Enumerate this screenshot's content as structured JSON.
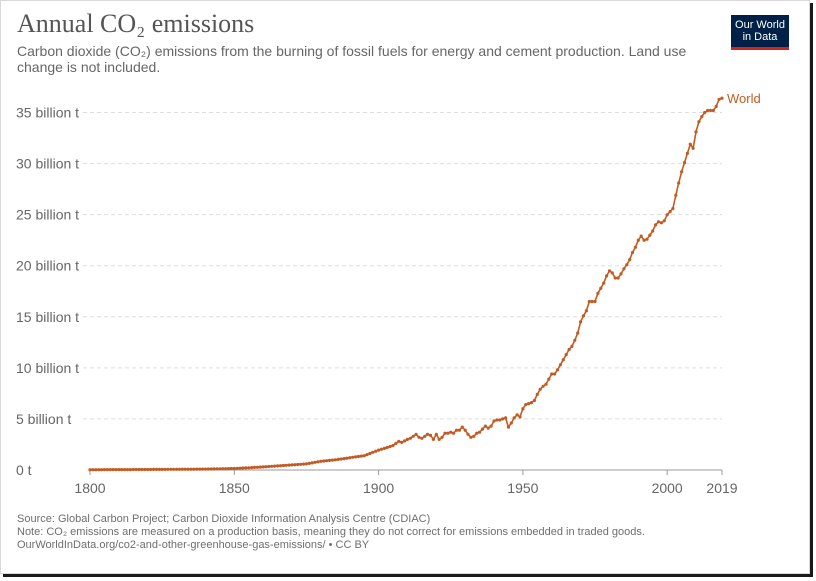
{
  "title": "Annual CO₂ emissions",
  "subtitle": "Carbon dioxide (CO₂) emissions from the burning of fossil fuels for energy and cement production. Land use change is not included.",
  "logo": {
    "line1": "Our World",
    "line2": "in Data"
  },
  "footer": {
    "source": "Source: Global Carbon Project; Carbon Dioxide Information Analysis Centre (CDIAC)",
    "note": "Note: CO₂ emissions are measured on a production basis, meaning they do not correct for emissions embedded in traded goods.",
    "url": "OurWorldInData.org/co2-and-other-greenhouse-gas-emissions/ • CC BY"
  },
  "colors": {
    "series": "#c15b23",
    "grid": "#dddddd",
    "axis": "#666666",
    "logo_bg": "#002147",
    "logo_accent": "#ce261e"
  },
  "chart_data": {
    "type": "line",
    "xlim": [
      1800,
      2019
    ],
    "ylim": [
      0,
      37.5
    ],
    "x_ticks": [
      1800,
      1850,
      1900,
      1950,
      2000,
      2019
    ],
    "y_ticks": [
      {
        "value": 0,
        "label": "0 t"
      },
      {
        "value": 5,
        "label": "5 billion t"
      },
      {
        "value": 10,
        "label": "10 billion t"
      },
      {
        "value": 15,
        "label": "15 billion t"
      },
      {
        "value": 20,
        "label": "20 billion t"
      },
      {
        "value": 25,
        "label": "25 billion t"
      },
      {
        "value": 30,
        "label": "30 billion t"
      },
      {
        "value": 35,
        "label": "35 billion t"
      }
    ],
    "grid": "horizontal dashed",
    "markers": true,
    "series": [
      {
        "name": "World",
        "points": [
          [
            1800,
            0.03
          ],
          [
            1810,
            0.04
          ],
          [
            1820,
            0.05
          ],
          [
            1830,
            0.07
          ],
          [
            1840,
            0.09
          ],
          [
            1850,
            0.15
          ],
          [
            1855,
            0.22
          ],
          [
            1860,
            0.3
          ],
          [
            1865,
            0.4
          ],
          [
            1870,
            0.5
          ],
          [
            1875,
            0.6
          ],
          [
            1880,
            0.85
          ],
          [
            1885,
            1.0
          ],
          [
            1890,
            1.2
          ],
          [
            1895,
            1.4
          ],
          [
            1900,
            1.95
          ],
          [
            1903,
            2.2
          ],
          [
            1905,
            2.4
          ],
          [
            1907,
            2.8
          ],
          [
            1908,
            2.7
          ],
          [
            1910,
            3.0
          ],
          [
            1911,
            3.1
          ],
          [
            1912,
            3.3
          ],
          [
            1913,
            3.5
          ],
          [
            1914,
            3.2
          ],
          [
            1915,
            3.1
          ],
          [
            1916,
            3.3
          ],
          [
            1917,
            3.5
          ],
          [
            1918,
            3.4
          ],
          [
            1919,
            3.0
          ],
          [
            1920,
            3.5
          ],
          [
            1921,
            3.0
          ],
          [
            1922,
            3.2
          ],
          [
            1923,
            3.6
          ],
          [
            1924,
            3.6
          ],
          [
            1925,
            3.7
          ],
          [
            1926,
            3.6
          ],
          [
            1927,
            3.9
          ],
          [
            1928,
            3.9
          ],
          [
            1929,
            4.2
          ],
          [
            1930,
            3.9
          ],
          [
            1931,
            3.5
          ],
          [
            1932,
            3.2
          ],
          [
            1933,
            3.3
          ],
          [
            1934,
            3.6
          ],
          [
            1935,
            3.7
          ],
          [
            1936,
            4.0
          ],
          [
            1937,
            4.3
          ],
          [
            1938,
            4.1
          ],
          [
            1939,
            4.3
          ],
          [
            1940,
            4.8
          ],
          [
            1941,
            4.9
          ],
          [
            1942,
            4.9
          ],
          [
            1943,
            5.0
          ],
          [
            1944,
            5.1
          ],
          [
            1945,
            4.2
          ],
          [
            1946,
            4.6
          ],
          [
            1947,
            5.1
          ],
          [
            1948,
            5.4
          ],
          [
            1949,
            5.2
          ],
          [
            1950,
            6.0
          ],
          [
            1951,
            6.4
          ],
          [
            1952,
            6.5
          ],
          [
            1953,
            6.6
          ],
          [
            1954,
            6.8
          ],
          [
            1955,
            7.4
          ],
          [
            1956,
            7.9
          ],
          [
            1957,
            8.2
          ],
          [
            1958,
            8.4
          ],
          [
            1959,
            8.9
          ],
          [
            1960,
            9.4
          ],
          [
            1961,
            9.4
          ],
          [
            1962,
            9.8
          ],
          [
            1963,
            10.3
          ],
          [
            1964,
            10.8
          ],
          [
            1965,
            11.3
          ],
          [
            1966,
            11.8
          ],
          [
            1967,
            12.1
          ],
          [
            1968,
            12.7
          ],
          [
            1969,
            13.4
          ],
          [
            1970,
            14.5
          ],
          [
            1971,
            15.1
          ],
          [
            1972,
            15.6
          ],
          [
            1973,
            16.5
          ],
          [
            1974,
            16.5
          ],
          [
            1975,
            16.5
          ],
          [
            1976,
            17.3
          ],
          [
            1977,
            17.8
          ],
          [
            1978,
            18.3
          ],
          [
            1979,
            19.0
          ],
          [
            1980,
            19.5
          ],
          [
            1981,
            19.3
          ],
          [
            1982,
            18.8
          ],
          [
            1983,
            18.8
          ],
          [
            1984,
            19.2
          ],
          [
            1985,
            19.7
          ],
          [
            1986,
            20.1
          ],
          [
            1987,
            20.6
          ],
          [
            1988,
            21.3
          ],
          [
            1989,
            21.8
          ],
          [
            1990,
            22.5
          ],
          [
            1991,
            22.9
          ],
          [
            1992,
            22.5
          ],
          [
            1993,
            22.6
          ],
          [
            1994,
            23.0
          ],
          [
            1995,
            23.4
          ],
          [
            1996,
            24.0
          ],
          [
            1997,
            24.3
          ],
          [
            1998,
            24.2
          ],
          [
            1999,
            24.4
          ],
          [
            2000,
            25.0
          ],
          [
            2001,
            25.3
          ],
          [
            2002,
            25.6
          ],
          [
            2003,
            26.9
          ],
          [
            2004,
            28.1
          ],
          [
            2005,
            29.2
          ],
          [
            2006,
            30.1
          ],
          [
            2007,
            31.0
          ],
          [
            2008,
            31.9
          ],
          [
            2009,
            31.5
          ],
          [
            2010,
            33.1
          ],
          [
            2011,
            34.1
          ],
          [
            2012,
            34.6
          ],
          [
            2013,
            35.0
          ],
          [
            2014,
            35.2
          ],
          [
            2015,
            35.2
          ],
          [
            2016,
            35.2
          ],
          [
            2017,
            35.6
          ],
          [
            2018,
            36.3
          ],
          [
            2019,
            36.4
          ]
        ]
      }
    ]
  }
}
